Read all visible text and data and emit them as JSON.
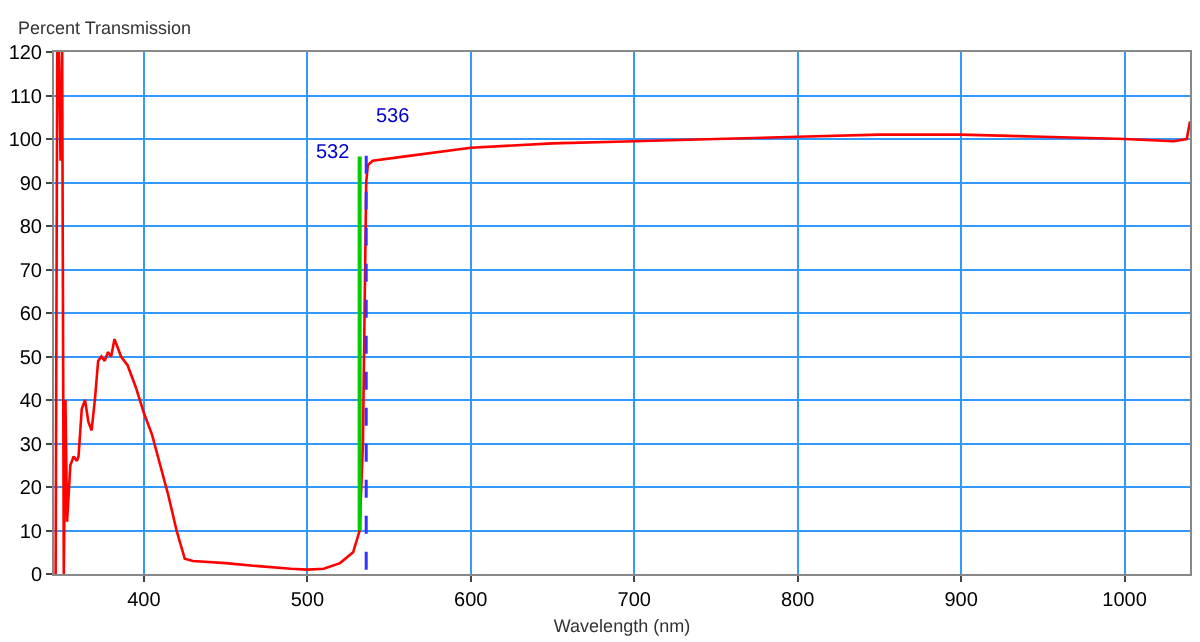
{
  "chart_data": {
    "type": "line",
    "ylabel": "Percent Transmission",
    "xlabel": "Wavelength (nm)",
    "x": [
      346,
      347,
      348,
      349,
      350,
      351,
      352,
      353,
      355,
      357,
      359,
      360,
      362,
      364,
      366,
      368,
      370,
      372,
      374,
      376,
      378,
      380,
      382,
      384,
      386,
      390,
      395,
      400,
      405,
      410,
      415,
      420,
      425,
      430,
      450,
      470,
      490,
      500,
      510,
      520,
      528,
      532,
      534,
      535,
      536,
      537,
      540,
      560,
      600,
      650,
      700,
      750,
      800,
      850,
      900,
      950,
      1000,
      1030,
      1038,
      1040
    ],
    "series": [
      {
        "color": "#ff0000",
        "values": [
          0,
          120,
          120,
          95,
          120,
          0,
          40,
          12,
          25,
          27,
          26,
          27,
          38,
          40,
          35,
          33,
          40,
          49,
          50,
          49,
          51,
          50,
          54,
          52,
          50,
          48,
          43,
          37,
          32,
          25,
          18,
          10,
          3.5,
          3,
          2.5,
          1.8,
          1.2,
          1,
          1.2,
          2.5,
          5,
          10,
          30,
          60,
          90,
          94,
          95,
          96,
          98,
          99,
          99.5,
          100,
          100.5,
          101,
          101,
          100.5,
          100,
          99.5,
          100,
          104
        ]
      }
    ],
    "xlim": [
      345,
      1040
    ],
    "ylim": [
      0,
      120
    ],
    "xticks": [
      400,
      500,
      600,
      700,
      800,
      900,
      1000
    ],
    "yticks": [
      0,
      10,
      20,
      30,
      40,
      50,
      60,
      70,
      80,
      90,
      100,
      110,
      120
    ],
    "grid": true,
    "ref_lines": [
      {
        "axis": "x",
        "value": 532,
        "label": "532",
        "color": "#00cc00",
        "line_style": "solid"
      },
      {
        "axis": "x",
        "value": 536,
        "label": "536",
        "color": "#3333ff",
        "line_style": "dashed"
      }
    ]
  }
}
